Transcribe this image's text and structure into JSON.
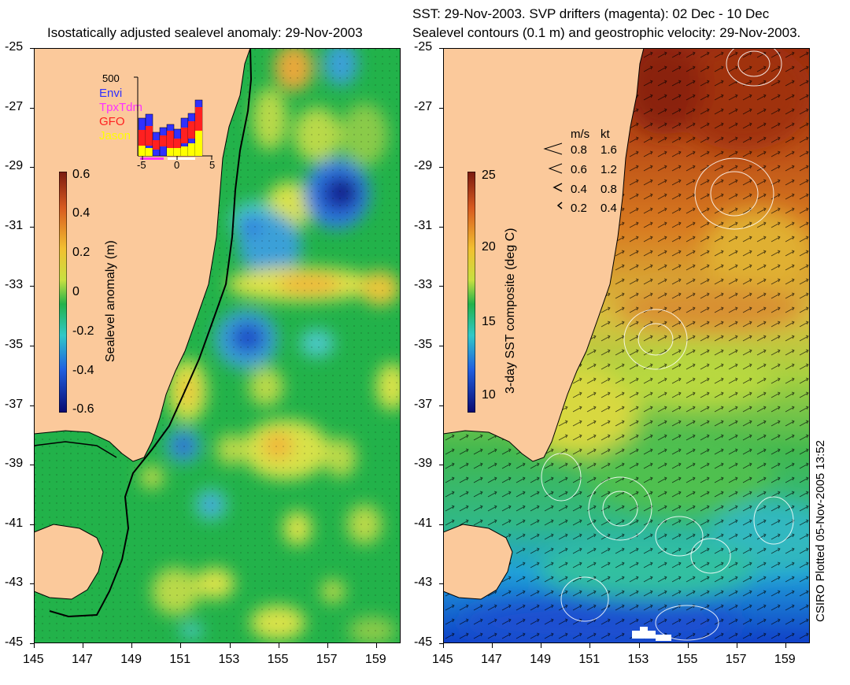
{
  "left_panel": {
    "title": "Isostatically adjusted sealevel anomaly: 29-Nov-2003",
    "colorbar": {
      "label": "Sealevel anomaly (m)",
      "ticks": [
        "0.6",
        "0.4",
        "0.2",
        "0",
        "-0.2",
        "-0.4",
        "-0.6"
      ]
    },
    "histogram": {
      "ymax_label": "500",
      "legend": [
        {
          "name": "Envi",
          "color": "#3030ff"
        },
        {
          "name": "TpxTdm",
          "color": "#ff30ff"
        },
        {
          "name": "GFO",
          "color": "#ff2020"
        },
        {
          "name": "Jason",
          "color": "#ffff00"
        }
      ],
      "xticks": [
        "-5",
        "0",
        "5"
      ]
    }
  },
  "right_panel": {
    "title_line1": "SST: 29-Nov-2003. SVP drifters (magenta): 02 Dec - 10 Dec",
    "title_line2": "Sealevel contours (0.1 m) and geostrophic velocity: 29-Nov-2003.",
    "colorbar": {
      "label": "3-day SST composite (deg C)",
      "ticks": [
        "25",
        "20",
        "15",
        "10"
      ]
    },
    "speed_legend": {
      "headers": [
        "m/s",
        "kt"
      ],
      "rows": [
        [
          "0.8",
          "1.6"
        ],
        [
          "0.6",
          "1.2"
        ],
        [
          "0.4",
          "0.8"
        ],
        [
          "0.2",
          "0.4"
        ]
      ]
    }
  },
  "axes": {
    "lat_ticks": [
      "-25",
      "-27",
      "-29",
      "-31",
      "-33",
      "-35",
      "-37",
      "-39",
      "-41",
      "-43",
      "-45"
    ],
    "lon_ticks": [
      "145",
      "147",
      "149",
      "151",
      "153",
      "155",
      "157",
      "159"
    ]
  },
  "credit": "CSIRO Plotted 05-Nov-2005 13:52",
  "colors": {
    "land": "#fbc99b",
    "coast": "#000000"
  }
}
